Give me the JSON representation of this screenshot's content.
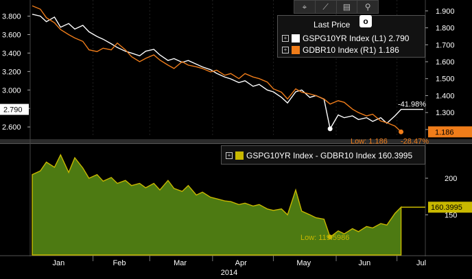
{
  "toolbar": {
    "icons": [
      "crosshair-icon",
      "draw-line-icon",
      "table-icon",
      "zoom-icon"
    ],
    "glyphs": [
      "⌖",
      "⟋",
      "▤",
      "⚲"
    ]
  },
  "legend_top": {
    "title": "Last Price",
    "gear_glyph": "o",
    "items": [
      {
        "label": "GSPG10YR Index  (L1)  2.790",
        "color": "#ffffff"
      },
      {
        "label": "GDBR10 Index  (R1)   1.186",
        "color": "#f07d1a"
      }
    ]
  },
  "legend_bottom": {
    "label": "GSPG10YR Index - GDBR10 Index 160.3995",
    "color": "#c8b800"
  },
  "annotations": {
    "white_change": "-41.98%",
    "orange_change": "-28.47%",
    "orange_low": "Low: 1.186",
    "spread_low": "Low: 119.5986"
  },
  "tags": {
    "left_last": "2.790",
    "right_last": "1.186",
    "spread_last": "160.3995"
  },
  "chart_data": [
    {
      "type": "line",
      "xlim": [
        "2014-01-01",
        "2014-07-15"
      ],
      "left_axis": {
        "ticks": [
          "3.800",
          "3.600",
          "3.400",
          "3.200",
          "3.000",
          "2.800",
          "2.600"
        ],
        "ylim": [
          2.49,
          3.93
        ]
      },
      "right_axis": {
        "ticks": [
          "1.900",
          "1.800",
          "1.700",
          "1.600",
          "1.500",
          "1.400",
          "1.300",
          "1.200"
        ],
        "ylim": [
          1.155,
          1.94
        ]
      },
      "x_ticks": [
        "Jan",
        "Feb",
        "Mar",
        "Apr",
        "May",
        "Jun",
        "Jul"
      ],
      "year_label": "2014",
      "series": [
        {
          "name": "GSPG10YR Index",
          "axis": "left",
          "color": "#ffffff",
          "x": [
            "2014-01-02",
            "2014-01-06",
            "2014-01-09",
            "2014-01-13",
            "2014-01-16",
            "2014-01-20",
            "2014-01-23",
            "2014-01-27",
            "2014-01-30",
            "2014-02-03",
            "2014-02-06",
            "2014-02-10",
            "2014-02-13",
            "2014-02-17",
            "2014-02-20",
            "2014-02-24",
            "2014-02-27",
            "2014-03-03",
            "2014-03-06",
            "2014-03-10",
            "2014-03-13",
            "2014-03-17",
            "2014-03-20",
            "2014-03-24",
            "2014-03-27",
            "2014-03-31",
            "2014-04-03",
            "2014-04-07",
            "2014-04-10",
            "2014-04-14",
            "2014-04-17",
            "2014-04-21",
            "2014-04-24",
            "2014-04-28",
            "2014-05-01",
            "2014-05-05",
            "2014-05-08",
            "2014-05-12",
            "2014-05-15",
            "2014-05-19",
            "2014-05-22",
            "2014-05-26",
            "2014-05-29",
            "2014-06-02",
            "2014-06-05",
            "2014-06-09",
            "2014-06-12",
            "2014-06-16",
            "2014-06-19",
            "2014-06-23",
            "2014-06-26",
            "2014-06-30",
            "2014-07-03",
            "2014-07-07",
            "2014-07-10",
            "2014-07-14"
          ],
          "values": [
            3.82,
            3.8,
            3.74,
            3.79,
            3.68,
            3.72,
            3.66,
            3.7,
            3.63,
            3.58,
            3.55,
            3.5,
            3.46,
            3.42,
            3.4,
            3.37,
            3.42,
            3.44,
            3.38,
            3.32,
            3.34,
            3.3,
            3.32,
            3.28,
            3.25,
            3.22,
            3.18,
            3.14,
            3.12,
            3.08,
            3.1,
            3.04,
            3.06,
            3.0,
            2.98,
            2.92,
            2.86,
            2.98,
            3.0,
            2.92,
            2.94,
            2.9,
            2.58,
            2.73,
            2.7,
            2.72,
            2.68,
            2.7,
            2.66,
            2.7,
            2.64,
            2.72,
            2.79,
            2.79,
            2.79,
            2.79
          ]
        },
        {
          "name": "GDBR10 Index",
          "axis": "right",
          "color": "#f07d1a",
          "x": [
            "2014-01-02",
            "2014-01-06",
            "2014-01-09",
            "2014-01-13",
            "2014-01-16",
            "2014-01-20",
            "2014-01-23",
            "2014-01-27",
            "2014-01-30",
            "2014-02-03",
            "2014-02-06",
            "2014-02-10",
            "2014-02-13",
            "2014-02-17",
            "2014-02-20",
            "2014-02-24",
            "2014-02-27",
            "2014-03-03",
            "2014-03-06",
            "2014-03-10",
            "2014-03-13",
            "2014-03-17",
            "2014-03-20",
            "2014-03-24",
            "2014-03-27",
            "2014-03-31",
            "2014-04-03",
            "2014-04-07",
            "2014-04-10",
            "2014-04-14",
            "2014-04-17",
            "2014-04-21",
            "2014-04-24",
            "2014-04-28",
            "2014-05-01",
            "2014-05-05",
            "2014-05-08",
            "2014-05-12",
            "2014-05-15",
            "2014-05-19",
            "2014-05-22",
            "2014-05-26",
            "2014-05-29",
            "2014-06-02",
            "2014-06-05",
            "2014-06-09",
            "2014-06-12",
            "2014-06-16",
            "2014-06-19",
            "2014-06-23",
            "2014-06-26",
            "2014-06-30",
            "2014-07-03"
          ],
          "values": [
            1.93,
            1.91,
            1.86,
            1.83,
            1.79,
            1.76,
            1.74,
            1.72,
            1.67,
            1.66,
            1.68,
            1.67,
            1.71,
            1.67,
            1.63,
            1.6,
            1.62,
            1.64,
            1.61,
            1.58,
            1.56,
            1.6,
            1.58,
            1.57,
            1.56,
            1.54,
            1.55,
            1.52,
            1.53,
            1.5,
            1.53,
            1.51,
            1.5,
            1.48,
            1.44,
            1.42,
            1.38,
            1.44,
            1.42,
            1.41,
            1.4,
            1.38,
            1.35,
            1.37,
            1.36,
            1.32,
            1.3,
            1.28,
            1.29,
            1.25,
            1.24,
            1.22,
            1.186
          ]
        }
      ]
    },
    {
      "type": "area",
      "ylim": [
        95,
        245
      ],
      "y_ticks": [
        "200",
        "150"
      ],
      "series": [
        {
          "name": "GSPG10YR Index - GDBR10 Index",
          "color": "#c8b800",
          "x": [
            "2014-01-02",
            "2014-01-06",
            "2014-01-09",
            "2014-01-13",
            "2014-01-16",
            "2014-01-20",
            "2014-01-23",
            "2014-01-27",
            "2014-01-30",
            "2014-02-03",
            "2014-02-06",
            "2014-02-10",
            "2014-02-13",
            "2014-02-17",
            "2014-02-20",
            "2014-02-24",
            "2014-02-27",
            "2014-03-03",
            "2014-03-06",
            "2014-03-10",
            "2014-03-13",
            "2014-03-17",
            "2014-03-20",
            "2014-03-24",
            "2014-03-27",
            "2014-03-31",
            "2014-04-03",
            "2014-04-07",
            "2014-04-10",
            "2014-04-14",
            "2014-04-17",
            "2014-04-21",
            "2014-04-24",
            "2014-04-28",
            "2014-05-01",
            "2014-05-05",
            "2014-05-08",
            "2014-05-12",
            "2014-05-15",
            "2014-05-19",
            "2014-05-22",
            "2014-05-26",
            "2014-05-29",
            "2014-06-02",
            "2014-06-05",
            "2014-06-09",
            "2014-06-12",
            "2014-06-16",
            "2014-06-19",
            "2014-06-23",
            "2014-06-26",
            "2014-06-30",
            "2014-07-03"
          ],
          "values": [
            205,
            210,
            222,
            215,
            232,
            208,
            228,
            214,
            200,
            205,
            196,
            201,
            193,
            197,
            190,
            193,
            187,
            193,
            184,
            197,
            186,
            182,
            190,
            177,
            181,
            174,
            172,
            169,
            168,
            164,
            166,
            162,
            164,
            158,
            156,
            158,
            150,
            184,
            155,
            150,
            146,
            144,
            119.6,
            128,
            124,
            131,
            127,
            134,
            132,
            138,
            136,
            152,
            160.4
          ]
        }
      ]
    }
  ]
}
